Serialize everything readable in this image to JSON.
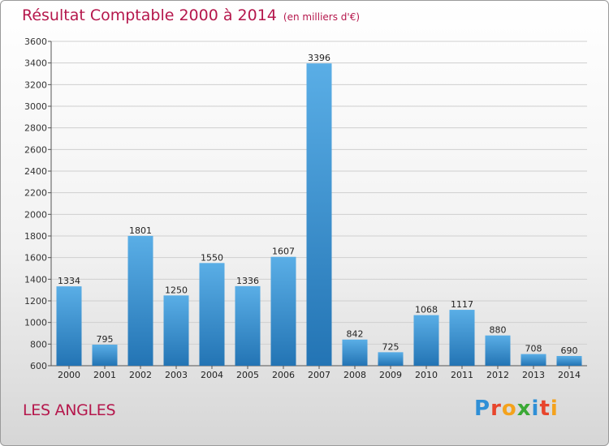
{
  "title": "Résultat Comptable 2000 à 2014",
  "subtitle": "(en milliers d'€)",
  "city": "LES ANGLES",
  "logo": {
    "letters": [
      "P",
      "r",
      "o",
      "x",
      "i",
      "t",
      "i"
    ],
    "colors": [
      "#2f8fd6",
      "#e8452c",
      "#f4a21c",
      "#3aa935",
      "#2f8fd6",
      "#e8452c",
      "#f4a21c"
    ]
  },
  "colors": {
    "bar_top": "#5aaee6",
    "bar_bottom": "#2374b4",
    "title": "#b5174c",
    "grid": "#cfcfcf"
  },
  "chart_data": {
    "type": "bar",
    "title": "Résultat Comptable 2000 à 2014",
    "ylabel": "en milliers d'€",
    "categories": [
      "2000",
      "2001",
      "2002",
      "2003",
      "2004",
      "2005",
      "2006",
      "2007",
      "2008",
      "2009",
      "2010",
      "2011",
      "2012",
      "2013",
      "2014"
    ],
    "values": [
      1334,
      795,
      1801,
      1250,
      1550,
      1336,
      1607,
      3396,
      842,
      725,
      1068,
      1117,
      880,
      708,
      690
    ],
    "ylim": [
      600,
      3600
    ],
    "yticks": [
      600,
      800,
      1000,
      1200,
      1400,
      1600,
      1800,
      2000,
      2200,
      2400,
      2600,
      2800,
      3000,
      3200,
      3400,
      3600
    ],
    "grid": true
  }
}
